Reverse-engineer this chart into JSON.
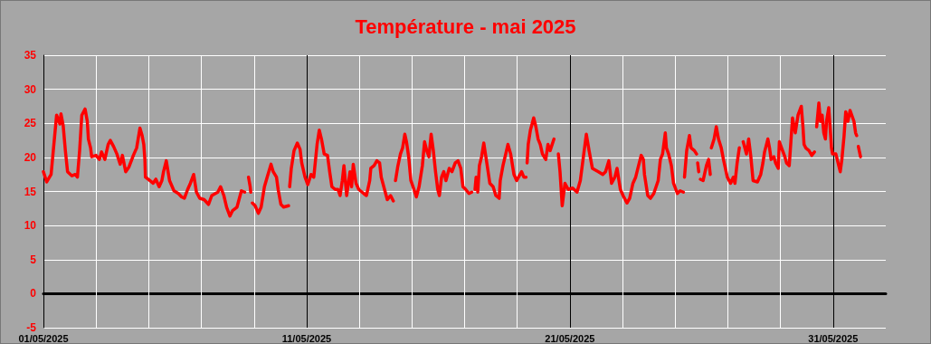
{
  "chart_data": {
    "type": "line",
    "title": "Température - mai 2025",
    "xlim": [
      "2025-05-01",
      "2025-06-02"
    ],
    "xticks": [
      {
        "value": "2025-05-01",
        "label": "01/05/2025"
      },
      {
        "value": "2025-05-03",
        "label": null
      },
      {
        "value": "2025-05-05",
        "label": null
      },
      {
        "value": "2025-05-07",
        "label": null
      },
      {
        "value": "2025-05-09",
        "label": null
      },
      {
        "value": "2025-05-11",
        "label": "11/05/2025"
      },
      {
        "value": "2025-05-13",
        "label": null
      },
      {
        "value": "2025-05-15",
        "label": null
      },
      {
        "value": "2025-05-17",
        "label": null
      },
      {
        "value": "2025-05-19",
        "label": null
      },
      {
        "value": "2025-05-21",
        "label": "21/05/2025"
      },
      {
        "value": "2025-05-23",
        "label": null
      },
      {
        "value": "2025-05-25",
        "label": null
      },
      {
        "value": "2025-05-27",
        "label": null
      },
      {
        "value": "2025-05-29",
        "label": null
      },
      {
        "value": "2025-05-31",
        "label": "31/05/2025"
      }
    ],
    "ylim": [
      -5,
      35
    ],
    "yticks": [
      -5,
      0,
      5,
      10,
      15,
      20,
      25,
      30,
      35
    ],
    "grid": true,
    "marker": "none",
    "line_style": "solid",
    "series": [
      {
        "color": "#ff0000",
        "x": [
          "2025-05-01T00:00",
          "2025-05-01T03:00",
          "2025-05-01T07:00",
          "2025-05-01T09:00",
          "2025-05-01T12:00",
          "2025-05-01T15:00",
          "2025-05-01T16:00",
          "2025-05-01T18:00",
          "2025-05-01T20:00",
          "2025-05-01T22:00",
          "2025-05-02T02:00",
          "2025-05-02T05:00",
          "2025-05-02T07:00",
          "2025-05-02T09:00",
          "2025-05-02T11:00",
          "2025-05-02T14:00",
          "2025-05-02T16:00",
          "2025-05-02T17:00",
          "2025-05-02T19:00",
          "2025-05-02T20:00",
          "2025-05-03T00:00",
          "2025-05-03T03:00",
          "2025-05-03T05:00",
          "2025-05-03T08:00",
          "2025-05-03T11:00",
          "2025-05-03T13:00",
          "2025-05-03T16:00",
          "2025-05-03T19:00",
          "2025-05-03T22:00",
          "2025-05-04T00:00",
          "2025-05-04T03:00",
          "2025-05-04T06:00",
          "2025-05-04T10:00",
          "2025-05-04T13:00",
          "2025-05-04T16:00",
          "2025-05-04T18:00",
          "2025-05-04T19:30",
          "2025-05-04T20:30",
          "2025-05-04T21:00",
          "2025-05-05T01:00",
          "2025-05-05T04:00",
          "2025-05-05T06:30",
          "2025-05-05T09:30",
          "2025-05-05T12:00",
          "2025-05-05T13:30",
          "2025-05-05T16:00",
          "2025-05-05T19:00",
          "2025-05-05T23:00",
          "2025-05-06T03:00",
          "2025-05-06T06:00",
          "2025-05-06T08:30",
          "2025-05-06T11:30",
          "2025-05-06T14:00",
          "2025-05-06T17:00",
          "2025-05-06T19:30",
          "2025-05-06T22:30",
          "2025-05-07T02:30",
          "2025-05-07T06:30",
          "2025-05-07T09:30",
          "2025-05-07T15:00",
          "2025-05-07T17:30",
          "2025-05-07T20:30",
          "2025-05-07T23:00",
          "2025-05-08T02:00",
          "2025-05-08T04:30",
          "2025-05-08T08:30",
          "2025-05-08T12:30",
          "2025-05-08T15:30",
          "2025-05-08T17:00",
          "2025-05-08T19:00",
          "2025-05-08T20:30",
          "2025-05-08T21:00",
          "2025-05-08T21:30",
          "2025-05-08T22:30",
          "2025-05-09T01:00",
          "2025-05-09T04:00",
          "2025-05-09T06:30",
          "2025-05-09T09:30",
          "2025-05-09T12:00",
          "2025-05-09T15:30",
          "2025-05-09T17:30",
          "2025-05-09T20:30",
          "2025-05-09T22:00",
          "2025-05-10T00:30",
          "2025-05-10T03:00",
          "2025-05-10T07:30",
          "2025-05-10T08:00",
          "2025-05-10T08:30",
          "2025-05-10T10:00",
          "2025-05-10T12:30",
          "2025-05-10T15:30",
          "2025-05-10T18:00",
          "2025-05-10T19:30",
          "2025-05-10T22:30",
          "2025-05-11T01:00",
          "2025-05-11T04:00",
          "2025-05-11T06:30",
          "2025-05-11T09:30",
          "2025-05-11T11:30",
          "2025-05-11T13:30",
          "2025-05-11T16:00",
          "2025-05-11T19:00",
          "2025-05-11T21:00",
          "2025-05-11T23:00",
          "2025-05-12T02:00",
          "2025-05-12T04:30",
          "2025-05-12T06:30",
          "2025-05-12T08:30",
          "2025-05-12T10:00",
          "2025-05-12T12:30",
          "2025-05-12T15:30",
          "2025-05-12T17:00",
          "2025-05-12T18:30",
          "2025-05-12T21:00",
          "2025-05-12T23:30",
          "2025-05-13T04:00",
          "2025-05-13T06:30",
          "2025-05-13T09:30",
          "2025-05-13T10:30",
          "2025-05-13T13:30",
          "2025-05-13T16:00",
          "2025-05-13T18:30",
          "2025-05-13T20:00",
          "2025-05-13T23:00",
          "2025-05-14T01:30",
          "2025-05-14T04:30",
          "2025-05-14T07:00",
          "2025-05-14T08:00",
          "2025-05-14T09:00",
          "2025-05-14T11:00",
          "2025-05-14T13:30",
          "2025-05-14T15:30",
          "2025-05-14T17:30",
          "2025-05-14T19:00",
          "2025-05-14T21:00",
          "2025-05-14T23:00",
          "2025-05-15T01:00",
          "2025-05-15T04:00",
          "2025-05-15T06:30",
          "2025-05-15T09:30",
          "2025-05-15T11:30",
          "2025-05-15T13:30",
          "2025-05-15T15:30",
          "2025-05-15T17:30",
          "2025-05-15T19:30",
          "2025-05-15T21:30",
          "2025-05-15T23:30",
          "2025-05-16T01:00",
          "2025-05-16T03:00",
          "2025-05-16T05:00",
          "2025-05-16T07:00",
          "2025-05-16T10:00",
          "2025-05-16T12:30",
          "2025-05-16T15:30",
          "2025-05-16T18:00",
          "2025-05-16T20:30",
          "2025-05-16T22:30",
          "2025-05-17T01:00",
          "2025-05-17T04:00",
          "2025-05-17T06:30",
          "2025-05-17T07:30",
          "2025-05-17T09:30",
          "2025-05-17T10:30",
          "2025-05-17T11:00",
          "2025-05-17T12:00",
          "2025-05-17T13:30",
          "2025-05-17T15:30",
          "2025-05-17T17:30",
          "2025-05-17T19:00",
          "2025-05-17T21:00",
          "2025-05-17T23:00",
          "2025-05-18T02:00",
          "2025-05-18T04:30",
          "2025-05-18T07:30",
          "2025-05-18T08:30",
          "2025-05-18T11:00",
          "2025-05-18T13:30",
          "2025-05-18T15:30",
          "2025-05-18T18:00",
          "2025-05-18T21:00",
          "2025-05-18T23:30",
          "2025-05-19T04:00",
          "2025-05-19T06:00",
          "2025-05-19T08:00",
          "2025-05-19T08:30",
          "2025-05-19T09:00",
          "2025-05-19T10:00",
          "2025-05-19T12:00",
          "2025-05-19T15:00",
          "2025-05-19T17:00",
          "2025-05-19T19:00",
          "2025-05-19T21:00",
          "2025-05-19T23:00",
          "2025-05-20T02:00",
          "2025-05-20T04:00",
          "2025-05-20T06:00",
          "2025-05-20T09:30",
          "2025-05-20T11:00",
          "2025-05-20T13:30",
          "2025-05-20T15:00",
          "2025-05-20T17:00",
          "2025-05-20T19:30",
          "2025-05-20T22:30",
          "2025-05-21T02:30",
          "2025-05-21T06:30",
          "2025-05-21T09:30",
          "2025-05-21T12:00",
          "2025-05-21T15:00",
          "2025-05-21T17:30",
          "2025-05-21T20:30",
          "2025-05-22T02:00",
          "2025-05-22T06:00",
          "2025-05-22T08:30",
          "2025-05-22T11:30",
          "2025-05-22T14:00",
          "2025-05-22T17:00",
          "2025-05-22T19:00",
          "2025-05-22T22:00",
          "2025-05-23T00:30",
          "2025-05-23T04:00",
          "2025-05-23T06:30",
          "2025-05-23T09:30",
          "2025-05-23T12:00",
          "2025-05-23T14:00",
          "2025-05-23T17:00",
          "2025-05-23T19:00",
          "2025-05-23T20:00",
          "2025-05-23T23:00",
          "2025-05-24T01:30",
          "2025-05-24T04:30",
          "2025-05-24T08:30",
          "2025-05-24T10:30",
          "2025-05-24T12:30",
          "2025-05-24T15:00",
          "2025-05-24T16:00",
          "2025-05-24T18:00",
          "2025-05-24T20:30",
          "2025-05-24T22:30",
          "2025-05-25T02:00",
          "2025-05-25T04:30",
          "2025-05-25T07:30",
          "2025-05-25T08:00",
          "2025-05-25T08:30",
          "2025-05-25T10:30",
          "2025-05-25T13:00",
          "2025-05-25T14:30",
          "2025-05-25T17:30",
          "2025-05-25T19:30",
          "2025-05-25T20:00",
          "2025-05-25T20:30",
          "2025-05-25T21:30",
          "2025-05-25T22:00",
          "2025-05-25T23:00",
          "2025-05-26T01:30",
          "2025-05-26T04:30",
          "2025-05-26T06:30",
          "2025-05-26T08:00",
          "2025-05-26T08:30",
          "2025-05-26T09:00",
          "2025-05-26T11:30",
          "2025-05-26T13:30",
          "2025-05-26T15:30",
          "2025-05-26T18:00",
          "2025-05-26T20:00",
          "2025-05-26T23:30",
          "2025-05-27T02:30",
          "2025-05-27T05:00",
          "2025-05-27T06:30",
          "2025-05-27T08:30",
          "2025-05-27T10:30",
          "2025-05-27T12:00",
          "2025-05-27T14:00",
          "2025-05-27T17:00",
          "2025-05-27T19:00",
          "2025-05-27T21:00",
          "2025-05-27T23:00",
          "2025-05-28T03:00",
          "2025-05-28T06:00",
          "2025-05-28T08:00",
          "2025-05-28T09:30",
          "2025-05-28T12:30",
          "2025-05-28T14:00",
          "2025-05-28T15:30",
          "2025-05-28T18:00",
          "2025-05-28T19:30",
          "2025-05-28T22:00",
          "2025-05-28T23:00",
          "2025-05-29T01:00",
          "2025-05-29T04:00",
          "2025-05-29T05:30",
          "2025-05-29T08:00",
          "2025-05-29T09:30",
          "2025-05-29T11:00",
          "2025-05-29T13:30",
          "2025-05-29T16:00",
          "2025-05-29T19:00",
          "2025-05-29T20:30",
          "2025-05-29T21:30",
          "2025-05-29T23:00",
          "2025-05-30T02:00",
          "2025-05-30T04:30",
          "2025-05-30T07:00",
          "2025-05-30T08:00",
          "2025-05-30T09:00",
          "2025-05-30T11:00",
          "2025-05-30T12:30",
          "2025-05-30T14:00",
          "2025-05-30T15:30",
          "2025-05-30T17:00",
          "2025-05-30T18:00",
          "2025-05-30T20:00",
          "2025-05-30T22:00",
          "2025-05-30T22:30",
          "2025-05-30T23:30",
          "2025-05-31T02:30",
          "2025-05-31T04:30",
          "2025-05-31T06:30",
          "2025-05-31T08:00",
          "2025-05-31T10:00",
          "2025-05-31T11:30",
          "2025-05-31T13:30",
          "2025-05-31T15:30",
          "2025-05-31T17:00",
          "2025-05-31T19:00",
          "2025-05-31T20:30",
          "2025-05-31T21:30",
          "2025-05-31T22:00",
          "2025-05-31T23:00",
          "2025-06-01T01:00"
        ],
        "values": [
          17.9,
          16.4,
          17.5,
          21,
          26.2,
          24.9,
          26.4,
          24.7,
          21,
          17.9,
          17.3,
          17.5,
          17.1,
          21,
          26.2,
          27.1,
          25.3,
          22.7,
          21.4,
          20.1,
          20.3,
          19.7,
          20.8,
          19.7,
          21.9,
          22.5,
          21.6,
          20.5,
          19,
          20.3,
          17.9,
          18.6,
          20.3,
          21.4,
          24.3,
          23.2,
          21.9,
          19.7,
          17.1,
          16.6,
          16.2,
          16.8,
          15.7,
          16.6,
          17.9,
          19.5,
          16.6,
          15.1,
          14.7,
          14.2,
          14,
          15.3,
          16.2,
          17.5,
          14.9,
          14,
          13.8,
          13.1,
          14.4,
          14.9,
          15.7,
          14.4,
          12.7,
          11.4,
          12.2,
          12.7,
          15.1,
          14.9,
          null,
          17.1,
          15.7,
          14.9,
          null,
          13.3,
          12.9,
          11.8,
          12.7,
          15.7,
          17.1,
          19,
          17.9,
          17.1,
          15.3,
          13.1,
          12.7,
          12.9,
          null,
          15.7,
          18.4,
          21,
          22.1,
          21.2,
          19.2,
          17.1,
          16,
          17.5,
          17.1,
          21.9,
          24,
          22.7,
          20.5,
          20.3,
          17.9,
          15.7,
          15.3,
          15.3,
          14.4,
          16.6,
          18.8,
          14.4,
          17.9,
          15.7,
          19,
          16.2,
          15.3,
          14.7,
          14.4,
          16.6,
          18.4,
          18.8,
          19.5,
          19.2,
          17.1,
          15.3,
          13.8,
          14.4,
          13.6,
          null,
          16.6,
          18.6,
          20.5,
          21.4,
          23.4,
          22.3,
          20.1,
          16.6,
          15.7,
          14.2,
          15.7,
          18.8,
          22.3,
          21,
          20.1,
          23.4,
          21,
          17.9,
          15.3,
          14.4,
          17.1,
          17.9,
          16.6,
          18.4,
          17.9,
          19.2,
          19.5,
          18.4,
          15.7,
          15.3,
          14.7,
          14.9,
          null,
          15.3,
          17.1,
          null,
          14.9,
          18.8,
          20.1,
          22.1,
          20.5,
          18.4,
          16.2,
          15.7,
          14.4,
          14,
          16.6,
          18.8,
          20.5,
          21.9,
          20.5,
          17.5,
          16.6,
          17.9,
          17.1,
          17.1,
          null,
          19.2,
          21.9,
          24,
          25.8,
          24.5,
          22.7,
          21.9,
          20.5,
          19.7,
          21.9,
          21,
          22.7,
          null,
          20.5,
          17.9,
          12.9,
          16.2,
          15.3,
          15.5,
          14.9,
          16.6,
          19.7,
          23.4,
          21,
          18.4,
          17.9,
          17.5,
          17.9,
          19.5,
          16.2,
          17.1,
          18.4,
          15.3,
          14.4,
          13.3,
          14,
          16.2,
          17.1,
          18.4,
          20.3,
          19.7,
          17.5,
          14.4,
          14,
          14.7,
          16.6,
          19.7,
          20.5,
          23.6,
          21.4,
          20.5,
          18.8,
          16.2,
          14.7,
          15.1,
          14.9,
          null,
          17.1,
          21,
          23.2,
          21.4,
          21,
          20.5,
          null,
          19.2,
          17.9,
          null,
          16.8,
          16.6,
          18.8,
          19.7,
          17.5,
          null,
          21.4,
          22.7,
          24.5,
          22.7,
          21.4,
          19.7,
          17.1,
          16.2,
          17.1,
          16.2,
          19.2,
          21.4,
          null,
          22.3,
          20.5,
          22.7,
          20.1,
          16.6,
          16.4,
          17.5,
          19.2,
          20.8,
          22.7,
          21.4,
          19.7,
          20.1,
          19.2,
          18.4,
          22.3,
          21.4,
          20.1,
          19.2,
          18.8,
          22.3,
          25.8,
          23.6,
          26.2,
          27.5,
          24.5,
          21.9,
          21.4,
          21,
          20.3,
          20.8,
          null,
          24.5,
          28,
          25.3,
          26.2,
          23.6,
          22.7,
          25.3,
          27.3,
          22.7,
          21.4,
          20.5,
          20.5,
          19.2,
          17.9,
          19.7,
          23.2,
          26.7,
          25.3,
          26.9,
          26.2,
          25.3,
          23.6,
          23.2,
          null,
          21.6,
          20.1
        ]
      }
    ]
  }
}
